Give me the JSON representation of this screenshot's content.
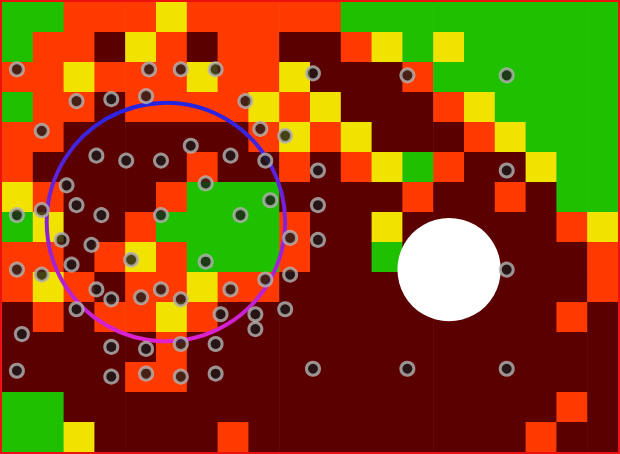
{
  "chart_data": {
    "type": "heatmap",
    "xlim": [
      0,
      620
    ],
    "ylim": [
      0,
      454
    ],
    "tick_labels": false,
    "grid": false,
    "colors": [
      "#1fc000",
      "#f2e200",
      "#ff3a00",
      "#5a0000"
    ],
    "cells": [
      [
        0,
        0,
        2,
        2,
        2,
        1,
        2,
        2,
        2,
        2,
        2,
        0,
        0,
        0,
        0,
        0,
        0,
        0,
        0,
        0
      ],
      [
        0,
        2,
        2,
        3,
        1,
        2,
        3,
        2,
        2,
        3,
        3,
        2,
        1,
        0,
        1,
        0,
        0,
        0,
        0,
        0
      ],
      [
        2,
        2,
        1,
        2,
        2,
        2,
        1,
        2,
        2,
        1,
        3,
        3,
        3,
        2,
        0,
        0,
        0,
        0,
        0,
        0
      ],
      [
        0,
        2,
        2,
        3,
        2,
        2,
        2,
        2,
        1,
        2,
        1,
        3,
        3,
        3,
        2,
        1,
        0,
        0,
        0,
        0
      ],
      [
        2,
        2,
        3,
        3,
        3,
        3,
        3,
        3,
        2,
        1,
        2,
        1,
        3,
        3,
        3,
        2,
        1,
        0,
        0,
        0
      ],
      [
        2,
        3,
        3,
        3,
        3,
        3,
        2,
        3,
        3,
        2,
        3,
        2,
        1,
        0,
        2,
        3,
        3,
        1,
        0,
        0
      ],
      [
        1,
        2,
        3,
        3,
        3,
        2,
        0,
        0,
        0,
        3,
        3,
        3,
        3,
        2,
        3,
        3,
        2,
        3,
        0,
        0
      ],
      [
        0,
        1,
        3,
        3,
        2,
        0,
        0,
        0,
        0,
        2,
        3,
        3,
        1,
        3,
        3,
        3,
        3,
        3,
        2,
        1
      ],
      [
        2,
        2,
        3,
        2,
        1,
        2,
        0,
        0,
        0,
        2,
        3,
        3,
        0,
        3,
        3,
        3,
        3,
        3,
        3,
        2
      ],
      [
        2,
        1,
        2,
        3,
        2,
        2,
        1,
        2,
        2,
        3,
        3,
        3,
        3,
        3,
        3,
        3,
        3,
        3,
        3,
        2
      ],
      [
        3,
        2,
        3,
        2,
        2,
        1,
        2,
        3,
        3,
        3,
        3,
        3,
        3,
        3,
        3,
        3,
        3,
        3,
        2,
        3
      ],
      [
        3,
        3,
        3,
        3,
        3,
        2,
        3,
        3,
        3,
        3,
        3,
        3,
        3,
        3,
        3,
        3,
        3,
        3,
        3,
        3
      ],
      [
        3,
        3,
        3,
        3,
        2,
        2,
        3,
        3,
        3,
        3,
        3,
        3,
        3,
        3,
        3,
        3,
        3,
        3,
        3,
        3
      ],
      [
        0,
        0,
        3,
        3,
        3,
        3,
        3,
        3,
        3,
        3,
        3,
        3,
        3,
        3,
        3,
        3,
        3,
        3,
        2,
        3
      ],
      [
        0,
        0,
        1,
        3,
        3,
        3,
        3,
        2,
        3,
        3,
        3,
        3,
        3,
        3,
        3,
        3,
        3,
        2,
        3,
        3
      ]
    ],
    "discs": [
      {
        "cx": 450,
        "cy": 270,
        "r": 52,
        "color": "#ffffff"
      }
    ],
    "rings": [
      {
        "cx": 165,
        "cy": 222,
        "r": 120,
        "colors": [
          "#2424e0",
          "#e020d0"
        ]
      }
    ],
    "points": {
      "marker": "circle",
      "x": [
        15,
        148,
        180,
        215,
        313,
        408,
        508,
        75,
        110,
        145,
        245,
        40,
        260,
        285,
        95,
        125,
        160,
        190,
        230,
        265,
        318,
        508,
        65,
        205,
        270,
        318,
        15,
        40,
        75,
        100,
        160,
        240,
        60,
        90,
        130,
        205,
        290,
        318,
        15,
        40,
        70,
        95,
        160,
        230,
        265,
        290,
        508,
        75,
        110,
        140,
        180,
        220,
        255,
        285,
        20,
        110,
        145,
        180,
        215,
        255,
        15,
        110,
        145,
        180,
        215,
        313,
        408,
        508
      ],
      "y": [
        68,
        68,
        68,
        68,
        72,
        74,
        74,
        100,
        98,
        95,
        100,
        130,
        128,
        135,
        155,
        160,
        160,
        145,
        155,
        160,
        170,
        170,
        185,
        183,
        200,
        205,
        215,
        210,
        205,
        215,
        215,
        215,
        240,
        245,
        260,
        262,
        238,
        240,
        270,
        275,
        265,
        290,
        290,
        290,
        280,
        275,
        270,
        310,
        300,
        298,
        300,
        315,
        315,
        310,
        335,
        348,
        350,
        345,
        345,
        330,
        372,
        378,
        375,
        378,
        375,
        370,
        370,
        370
      ]
    }
  }
}
